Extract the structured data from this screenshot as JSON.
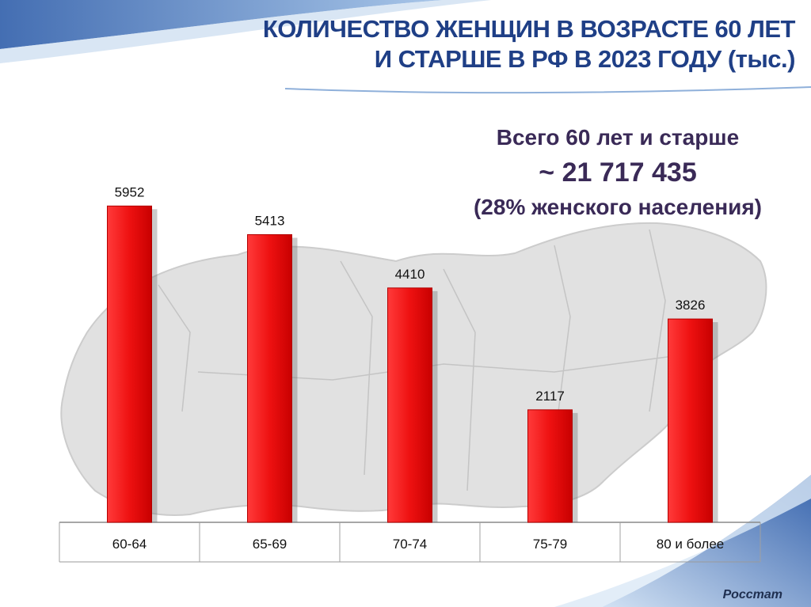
{
  "title_lines": [
    "КОЛИЧЕСТВО ЖЕНЩИН В ВОЗРАСТЕ 60 ЛЕТ",
    "И СТАРШЕ В РФ В 2023 ГОДУ (тыс.)"
  ],
  "summary": {
    "line1": "Всего 60 лет и старше",
    "value": "~ 21 717 435",
    "line3": "(28% женского населения)"
  },
  "source": "Росстат",
  "colors": {
    "bar": "#ee1111",
    "title": "#1f3f86",
    "accent_wave": "#3f6fbf"
  },
  "chart_data": {
    "type": "bar",
    "title": "КОЛИЧЕСТВО ЖЕНЩИН В ВОЗРАСТЕ 60 ЛЕТ И СТАРШЕ В РФ В 2023 ГОДУ (тыс.)",
    "categories": [
      "60-64",
      "65-69",
      "70-74",
      "75-79",
      "80 и более"
    ],
    "values": [
      5952,
      5413,
      4410,
      2117,
      3826
    ],
    "data_labels": [
      "5952",
      "5413",
      "4410",
      "2117",
      "3826"
    ],
    "xlabel": "",
    "ylabel": "",
    "ylim": [
      0,
      6500
    ],
    "grid": false,
    "legend": "none"
  }
}
